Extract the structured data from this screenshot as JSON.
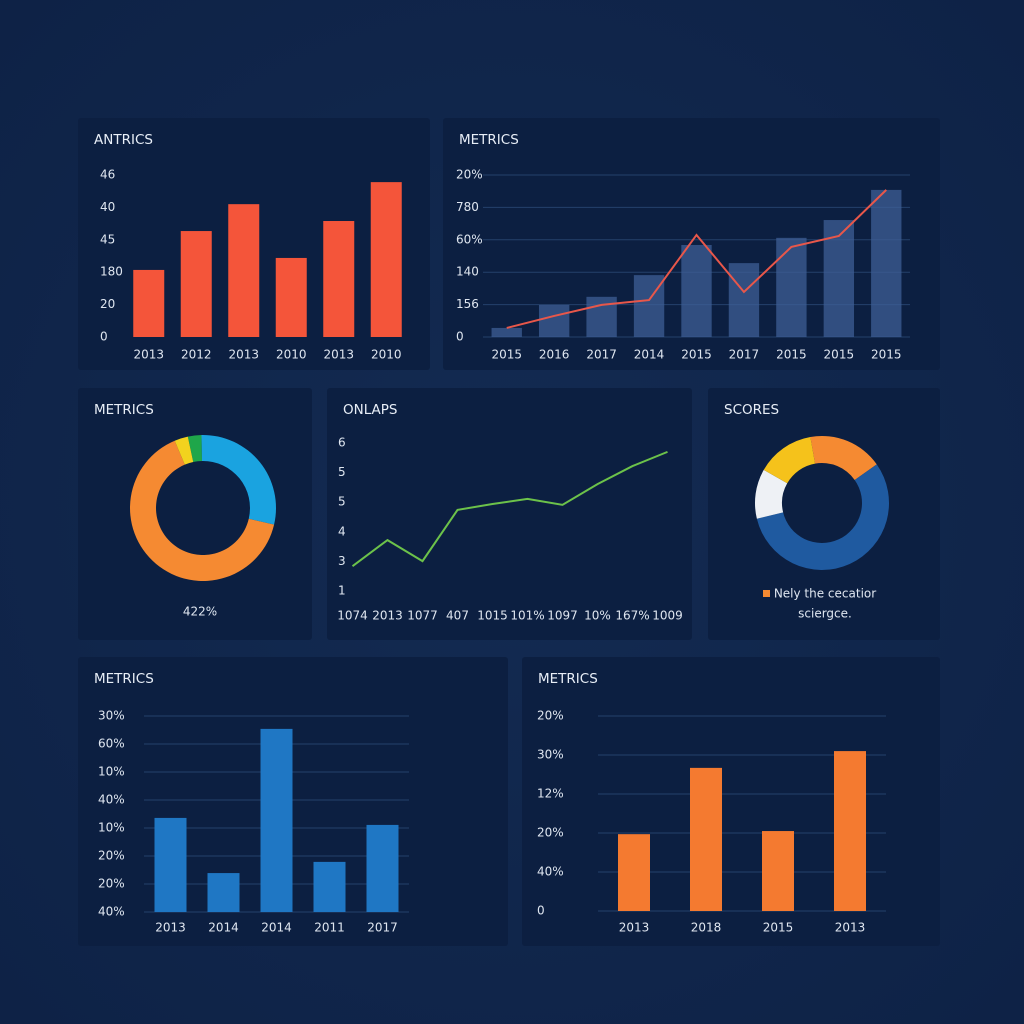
{
  "chart_data": [
    {
      "type": "bar",
      "title": "ANTRICS",
      "categories": [
        "2013",
        "2012",
        "2013",
        "2010",
        "2013",
        "2010"
      ],
      "values": [
        2.07,
        3.27,
        4.1,
        2.44,
        3.58,
        4.78
      ],
      "color": "#f4553a",
      "ylim": [
        0,
        5
      ],
      "yticks": [
        {
          "value": 5,
          "label": "46"
        },
        {
          "value": 4,
          "label": "40"
        },
        {
          "value": 3,
          "label": "45"
        },
        {
          "value": 2,
          "label": "180"
        },
        {
          "value": 1,
          "label": "20"
        },
        0
      ],
      "grid": false
    },
    {
      "type": "combo",
      "title": "METRICS",
      "categories": [
        "2015",
        "2016",
        "2017",
        "2014",
        "2015",
        "2017",
        "2015",
        "2015",
        "2015"
      ],
      "series": [
        {
          "color": "#3d5f95",
          "style": "area",
          "values": [
            0.28,
            0.99,
            1.24,
            1.91,
            2.84,
            2.28,
            3.06,
            3.61,
            4.54
          ]
        },
        {
          "color": "#e8574a",
          "style": "line",
          "values": [
            0.28,
            0.65,
            0.99,
            1.14,
            3.15,
            1.39,
            2.78,
            3.12,
            4.54
          ]
        }
      ],
      "ylim": [
        0,
        5
      ],
      "yticks": [
        {
          "value": 5,
          "label": "20%"
        },
        {
          "value": 4,
          "label": "780"
        },
        {
          "value": 3,
          "label": "60%"
        },
        {
          "value": 2,
          "label": "140"
        },
        {
          "value": 1,
          "label": "156"
        },
        0
      ],
      "grid": true
    },
    {
      "type": "donut",
      "title": "METRICS",
      "values": [
        3,
        29,
        65,
        3
      ],
      "colors": [
        "#1fa64a",
        "#1aa3e0",
        "#f58a32",
        "#f2d21e"
      ],
      "center_label": "422%"
    },
    {
      "type": "line",
      "title": "ONLAPS",
      "categories": [
        "1074",
        "2013",
        "1077",
        "407",
        "1015",
        "101%",
        "1097",
        "10%",
        "167%",
        "1009"
      ],
      "values": [
        1.84,
        2.72,
        2.01,
        3.74,
        3.94,
        4.11,
        3.91,
        4.61,
        5.22,
        5.7
      ],
      "color": "#6cc24a",
      "ylim": [
        1,
        6
      ],
      "yticks": [
        6,
        5,
        {
          "value": 4,
          "label": "5"
        },
        {
          "value": 3,
          "label": "4"
        },
        {
          "value": 2,
          "label": "3"
        },
        1
      ],
      "grid": false
    },
    {
      "type": "donut",
      "title": "SCORES",
      "values": [
        18,
        56,
        12,
        14
      ],
      "colors": [
        "#f58a32",
        "#1f5aa0",
        "#eef1f5",
        "#f5c21b"
      ],
      "annotation": [
        "Nely the cecatior",
        "sciergce."
      ],
      "annotation_color": "#f58a32"
    },
    {
      "type": "bar",
      "title": "METRICS",
      "categories": [
        "2013",
        "2014",
        "2014",
        "2011",
        "2017"
      ],
      "values": [
        3.36,
        1.39,
        6.54,
        1.79,
        3.11
      ],
      "color": "#1f77c4",
      "ylim": [
        0,
        7
      ],
      "yticks": [
        {
          "value": 7,
          "label": "30%"
        },
        {
          "value": 6,
          "label": "60%"
        },
        {
          "value": 5,
          "label": "10%"
        },
        {
          "value": 4,
          "label": "40%"
        },
        {
          "value": 3,
          "label": "10%"
        },
        {
          "value": 2,
          "label": "20%"
        },
        {
          "value": 1,
          "label": "20%"
        },
        {
          "value": 0,
          "label": "40%"
        }
      ],
      "grid": true
    },
    {
      "type": "bar",
      "title": "METRICS",
      "categories": [
        "2013",
        "2018",
        "2015",
        "2013"
      ],
      "values": [
        1.97,
        3.67,
        2.05,
        4.1
      ],
      "color": "#f47a30",
      "ylim": [
        0,
        5
      ],
      "yticks": [
        {
          "value": 5,
          "label": "20%"
        },
        {
          "value": 4,
          "label": "30%"
        },
        {
          "value": 3,
          "label": "12%"
        },
        {
          "value": 2,
          "label": "20%"
        },
        {
          "value": 1,
          "label": "40%"
        },
        0
      ],
      "grid": true
    }
  ]
}
